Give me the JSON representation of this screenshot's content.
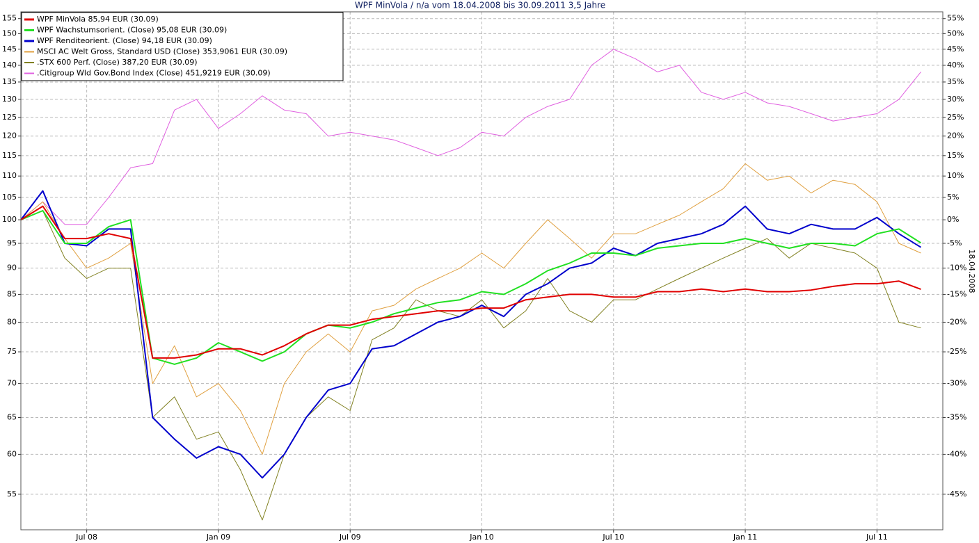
{
  "chart_data": {
    "type": "line",
    "title": "WPF MinVola / n/a vom 18.04.2008 bis 30.09.2011 3,5 Jahre",
    "side_label": "18.04.2008",
    "x": [
      "2008-04",
      "2008-05",
      "2008-06",
      "2008-07",
      "2008-08",
      "2008-09",
      "2008-10",
      "2008-11",
      "2008-12",
      "2009-01",
      "2009-02",
      "2009-03",
      "2009-04",
      "2009-05",
      "2009-06",
      "2009-07",
      "2009-08",
      "2009-09",
      "2009-10",
      "2009-11",
      "2009-12",
      "2010-01",
      "2010-02",
      "2010-03",
      "2010-04",
      "2010-05",
      "2010-06",
      "2010-07",
      "2010-08",
      "2010-09",
      "2010-10",
      "2010-11",
      "2010-12",
      "2011-01",
      "2011-02",
      "2011-03",
      "2011-04",
      "2011-05",
      "2011-06",
      "2011-07",
      "2011-08",
      "2011-09"
    ],
    "xlim": [
      "2008-04",
      "2011-10"
    ],
    "xticks": [
      {
        "value": "2008-07",
        "label": "Jul 08"
      },
      {
        "value": "2009-01",
        "label": "Jan 09"
      },
      {
        "value": "2009-07",
        "label": "Jul 09"
      },
      {
        "value": "2010-01",
        "label": "Jan 10"
      },
      {
        "value": "2010-07",
        "label": "Jul 10"
      },
      {
        "value": "2011-01",
        "label": "Jan 11"
      },
      {
        "value": "2011-07",
        "label": "Jul 11"
      }
    ],
    "ylim": [
      50.9,
      157.3
    ],
    "log_scale": true,
    "grid": true,
    "yticks": [
      55,
      60,
      65,
      70,
      75,
      80,
      85,
      90,
      95,
      100,
      105,
      110,
      115,
      120,
      125,
      130,
      135,
      140,
      145,
      150,
      155
    ],
    "y2lim": [
      -49.1,
      57.3
    ],
    "y2ticks": [
      {
        "value": -45,
        "label": "-45%"
      },
      {
        "value": -40,
        "label": "-40%"
      },
      {
        "value": -35,
        "label": "-35%"
      },
      {
        "value": -30,
        "label": "-30%"
      },
      {
        "value": -25,
        "label": "-25%"
      },
      {
        "value": -20,
        "label": "-20%"
      },
      {
        "value": -15,
        "label": "-15%"
      },
      {
        "value": -10,
        "label": "-10%"
      },
      {
        "value": -5,
        "label": "-5%"
      },
      {
        "value": 0,
        "label": "0%"
      },
      {
        "value": 5,
        "label": "5%"
      },
      {
        "value": 10,
        "label": "10%"
      },
      {
        "value": 15,
        "label": "15%"
      },
      {
        "value": 20,
        "label": "20%"
      },
      {
        "value": 25,
        "label": "25%"
      },
      {
        "value": 30,
        "label": "30%"
      },
      {
        "value": 35,
        "label": "35%"
      },
      {
        "value": 40,
        "label": "40%"
      },
      {
        "value": 45,
        "label": "45%"
      },
      {
        "value": 50,
        "label": "50%"
      },
      {
        "value": 55,
        "label": "55%"
      }
    ],
    "legend": "top-left",
    "series": [
      {
        "name": "WPF MinVola 85,94 EUR (30.09)",
        "color": "#e00000",
        "line_width": 2,
        "values": [
          100,
          103,
          96,
          96,
          97,
          96,
          74,
          74,
          74.5,
          75.5,
          75.5,
          74.5,
          76,
          78,
          79.5,
          79.5,
          80.5,
          81,
          81.5,
          82,
          82,
          82.5,
          82.5,
          84,
          84.5,
          85,
          85,
          84.5,
          84.5,
          85.5,
          85.5,
          86,
          85.5,
          86,
          85.5,
          85.5,
          85.8,
          86.5,
          87,
          87,
          87.5,
          85.94
        ]
      },
      {
        "name": "WPF Wachstumsorient. (Close) 95,08 EUR (30.09)",
        "color": "#22e022",
        "line_width": 2,
        "values": [
          100,
          102,
          95,
          95,
          98.5,
          100,
          74,
          73,
          74,
          76.5,
          75,
          73.5,
          75,
          78,
          79.5,
          79,
          80,
          81.5,
          82.5,
          83.5,
          84,
          85.5,
          85,
          87,
          89.5,
          91,
          93,
          93,
          92.5,
          94,
          94.5,
          95,
          95,
          96,
          95,
          94,
          95,
          95,
          94.5,
          97,
          98,
          95.08
        ]
      },
      {
        "name": "WPF Renditeorient. (Close) 94,18 EUR (30.09)",
        "color": "#0000cc",
        "line_width": 2,
        "values": [
          100,
          106.5,
          95,
          94.5,
          98,
          98,
          65,
          62,
          59.5,
          61,
          60,
          57,
          60,
          65,
          69,
          70,
          75.5,
          76,
          78,
          80,
          81,
          83,
          81,
          85,
          87,
          90,
          91,
          94,
          92.5,
          95,
          96,
          97,
          99,
          103,
          98,
          97,
          99,
          98,
          98,
          100.5,
          97,
          94.18
        ]
      },
      {
        "name": "MSCI AC Welt Gross, Standard USD (Close) 353,9061 EUR (30.09)",
        "color": "#e0a040",
        "line_width": 1,
        "values": [
          100,
          104,
          96,
          90,
          92,
          95,
          70,
          76,
          68,
          70,
          66,
          60,
          70,
          75,
          78,
          75,
          82,
          83,
          86,
          88,
          90,
          93,
          90,
          95,
          100,
          96,
          92,
          97,
          97,
          99,
          101,
          104,
          107,
          113,
          109,
          110,
          106,
          109,
          108,
          104,
          95,
          93
        ]
      },
      {
        "name": ".STX 600 Perf. (Close) 387,20 EUR (30.09)",
        "color": "#808020",
        "line_width": 1,
        "values": [
          100,
          102,
          92,
          88,
          90,
          90,
          65,
          68,
          62,
          63,
          58,
          52,
          60,
          65,
          68,
          66,
          77,
          79,
          84,
          82,
          81,
          84,
          79,
          82,
          88,
          82,
          80,
          84,
          84,
          86,
          88,
          90,
          92,
          94,
          96,
          92,
          95,
          94,
          93,
          90,
          80,
          79
        ]
      },
      {
        "name": ".Citigroup Wld Gov.Bond Index (Close) 451,9219 EUR (30.09)",
        "color": "#e060e0",
        "line_width": 1,
        "values": [
          100,
          104,
          99,
          99,
          105,
          112,
          113,
          127,
          130,
          122,
          126,
          131,
          127,
          126,
          120,
          121,
          120,
          119,
          117,
          115,
          117,
          121,
          120,
          125,
          128,
          130,
          140,
          145,
          142,
          138,
          140,
          132,
          130,
          132,
          129,
          128,
          126,
          124,
          125,
          126,
          130,
          138
        ]
      }
    ]
  }
}
